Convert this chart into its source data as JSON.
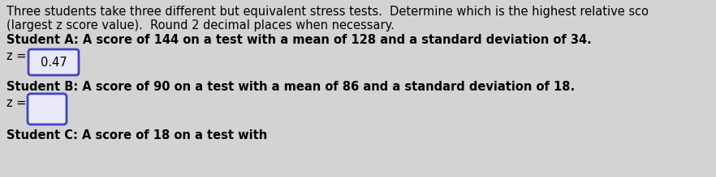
{
  "bg_color": "#d3d3d3",
  "text_color": "#000000",
  "line1": "Three students take three different but equivalent stress tests.  Determine which is the highest relative sco",
  "line2": "(largest z score value).  Round 2 decimal places when necessary.",
  "student_a_label": "Student A: A score of 144 on a test with a mean of 128 and a standard deviation of 34.",
  "student_a_z_prefix": "z = ",
  "student_a_z_value": "0.47",
  "student_b_label": "Student B: A score of 90 on a test with a mean of 86 and a standard deviation of 18.",
  "student_b_z_prefix": "z = ",
  "student_c_partial": "Student C: A score of 18 on a test with",
  "box_filled_color": "#e8e8f8",
  "box_border_color": "#4444bb",
  "font_size": 10.5
}
